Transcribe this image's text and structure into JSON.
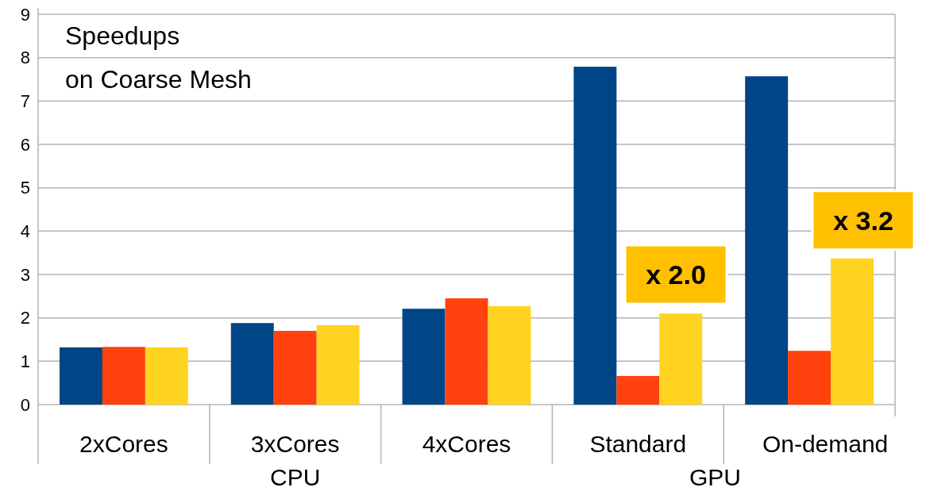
{
  "chart_data": {
    "type": "bar",
    "title": "Speedups on Coarse Mesh",
    "categories": [
      "2xCores",
      "3xCores",
      "4xCores",
      "Standard",
      "On-demand"
    ],
    "series": [
      {
        "color": "#004586",
        "values": [
          1.32,
          1.88,
          2.21,
          7.79,
          7.57
        ]
      },
      {
        "color": "#ff420e",
        "values": [
          1.33,
          1.7,
          2.45,
          0.66,
          1.24
        ]
      },
      {
        "color": "#ffd320",
        "values": [
          1.32,
          1.83,
          2.27,
          2.1,
          3.37
        ]
      }
    ],
    "ylim": [
      0,
      9
    ],
    "yticks": [
      0,
      1,
      2,
      3,
      4,
      5,
      6,
      7,
      8,
      9
    ],
    "grid": "y",
    "annotations": [
      "CPU",
      "GPU",
      "x 2.0",
      "x 3.2"
    ]
  }
}
